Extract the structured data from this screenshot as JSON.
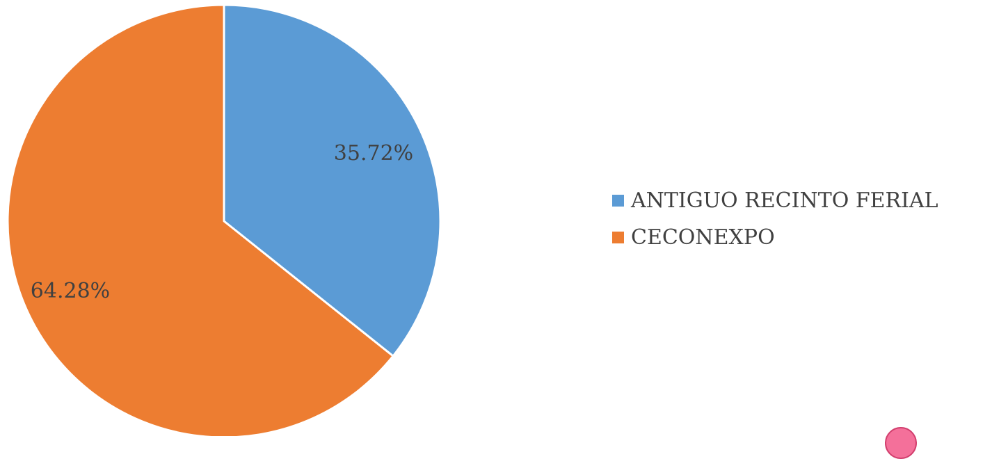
{
  "chart_data": {
    "type": "pie",
    "categories": [
      "ANTIGUO RECINTO FERIAL",
      "CECONEXPO"
    ],
    "values": [
      35.72,
      64.28
    ],
    "labels": [
      "35.72%",
      "64.28%"
    ],
    "colors": [
      "#5b9bd5",
      "#ed7d31"
    ],
    "title": "",
    "legend_position": "right",
    "start_angle": "12 o'clock, clockwise"
  },
  "legend": {
    "items": [
      {
        "label": "ANTIGUO RECINTO FERIAL",
        "color": "#5b9bd5"
      },
      {
        "label": "CECONEXPO",
        "color": "#ed7d31"
      }
    ]
  }
}
